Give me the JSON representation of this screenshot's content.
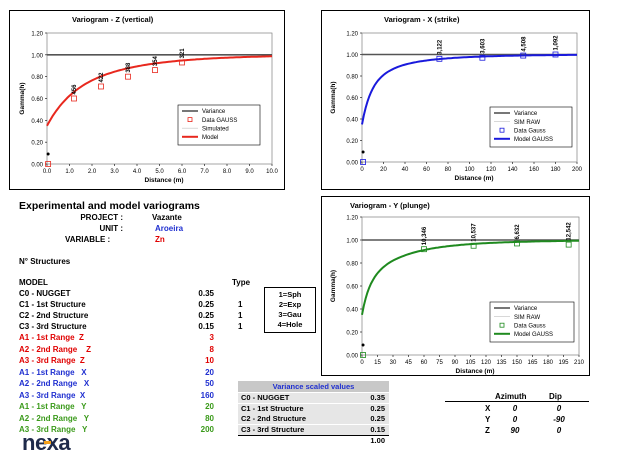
{
  "charts": {
    "z": {
      "title": "Variogram - Z (vertical)",
      "ylabel": "Gamma(h)",
      "xlabel": "Distance (m)",
      "xlim": [
        0,
        10
      ],
      "ylim": [
        0,
        1.2
      ],
      "xticks": [
        "0.0",
        "1.0",
        "2.0",
        "3.0",
        "4.0",
        "5.0",
        "6.0",
        "7.0",
        "8.0",
        "9.0",
        "10.0"
      ],
      "yticks": [
        "0.00",
        "0.20",
        "0.40",
        "0.60",
        "0.80",
        "1.00",
        "1.20"
      ],
      "legend": [
        "Variance",
        "Data GAUSS",
        "Simulated",
        "Model"
      ],
      "color": "#e8281e",
      "data_points": [
        {
          "x": 0.05,
          "y": 0.0,
          "label": "0"
        },
        {
          "x": 1.2,
          "y": 0.6,
          "label": "456"
        },
        {
          "x": 2.4,
          "y": 0.71,
          "label": "422"
        },
        {
          "x": 3.6,
          "y": 0.8,
          "label": "388"
        },
        {
          "x": 4.8,
          "y": 0.86,
          "label": "354"
        },
        {
          "x": 6.0,
          "y": 0.93,
          "label": "321"
        }
      ]
    },
    "x": {
      "title": "Variogram - X (strike)",
      "ylabel": "Gamma(h)",
      "xlabel": "Distance (m)",
      "xlim": [
        0,
        200
      ],
      "ylim": [
        0,
        1.2
      ],
      "xticks": [
        "0",
        "20",
        "40",
        "60",
        "80",
        "100",
        "120",
        "140",
        "160",
        "180",
        "200"
      ],
      "yticks": [
        "0.00",
        "0.20",
        "0.40",
        "0.60",
        "0.80",
        "1.00",
        "1.20"
      ],
      "legend": [
        "Variance",
        "SIM RAW",
        "Data Gauss",
        "Model GAUSS"
      ],
      "color": "#1a1adc",
      "data_points": [
        {
          "x": 1,
          "y": 0.0,
          "label": "0"
        },
        {
          "x": 72,
          "y": 0.96,
          "label": "3,122"
        },
        {
          "x": 112,
          "y": 0.97,
          "label": "3,603"
        },
        {
          "x": 150,
          "y": 0.99,
          "label": "4,508"
        },
        {
          "x": 180,
          "y": 1.0,
          "label": "1,092"
        }
      ]
    },
    "y": {
      "title": "Variogram - Y (plunge)",
      "ylabel": "Gamma(h)",
      "xlabel": "Distance (m)",
      "xlim": [
        0,
        210
      ],
      "ylim": [
        0,
        1.2
      ],
      "xticks": [
        "0",
        "15",
        "30",
        "45",
        "60",
        "75",
        "90",
        "105",
        "120",
        "135",
        "150",
        "165",
        "180",
        "195",
        "210"
      ],
      "yticks": [
        "0.00",
        "0.20",
        "0.40",
        "0.60",
        "0.80",
        "1.00",
        "1.20"
      ],
      "legend": [
        "Variance",
        "SIM RAW",
        "Data Gauss",
        "Model GAUSS"
      ],
      "color": "#1f8a1f",
      "data_points": [
        {
          "x": 1,
          "y": 0.0,
          "label": "0"
        },
        {
          "x": 60,
          "y": 0.92,
          "label": "10,346"
        },
        {
          "x": 108,
          "y": 0.95,
          "label": "10,537"
        },
        {
          "x": 150,
          "y": 0.97,
          "label": "6,632"
        },
        {
          "x": 200,
          "y": 0.96,
          "label": "12,542"
        }
      ]
    }
  },
  "model": {
    "nugget": 0.35,
    "sills": [
      0.25,
      0.25,
      0.15
    ],
    "ranges": {
      "z": [
        3,
        8,
        10
      ],
      "x": [
        20,
        50,
        160
      ],
      "y": [
        20,
        80,
        200
      ]
    }
  },
  "info": {
    "heading": "Experimental and model variograms",
    "project_label": "PROJECT :",
    "project_value": "Vazante",
    "unit_label": "UNIT :",
    "unit_value": "Aroeira",
    "variable_label": "VARIABLE :",
    "variable_value": "Zn",
    "structures_label": "N° Structures",
    "model_label": "MODEL",
    "type_label": "Type",
    "rows": [
      {
        "label": "C0 - NUGGET",
        "value": "0.35",
        "type": ""
      },
      {
        "label": "C1 - 1st Structure",
        "value": "0.25",
        "type": "1"
      },
      {
        "label": "C2 - 2nd Structure",
        "value": "0.25",
        "type": "1"
      },
      {
        "label": "C3 - 3rd Structure",
        "value": "0.15",
        "type": "1"
      }
    ],
    "types": [
      "1=Sph",
      "2=Exp",
      "3=Gau",
      "4=Hole"
    ],
    "ranges_z": [
      {
        "label": "A1 - 1st Range  Z",
        "value": "3"
      },
      {
        "label": "A2 - 2nd Range    Z",
        "value": "8"
      },
      {
        "label": "A3 - 3rd Range  Z",
        "value": "10"
      }
    ],
    "ranges_x": [
      {
        "label": "A1 - 1st Range   X",
        "value": "20"
      },
      {
        "label": "A2 - 2nd Range   X",
        "value": "50"
      },
      {
        "label": "A3 - 3rd Range  X",
        "value": "160"
      }
    ],
    "ranges_y": [
      {
        "label": "A1 - 1st Range   Y",
        "value": "20"
      },
      {
        "label": "A2 - 2nd Range   Y",
        "value": "80"
      },
      {
        "label": "A3 - 3rd Range   Y",
        "value": "200"
      }
    ]
  },
  "variance_scaled": {
    "title": "Variance scaled values",
    "rows": [
      {
        "label": "C0 - NUGGET",
        "value": "0.35"
      },
      {
        "label": "C1 - 1st Structure",
        "value": "0.25"
      },
      {
        "label": "C2 - 2nd Structure",
        "value": "0.25"
      },
      {
        "label": "C3 - 3rd Structure",
        "value": "0.15"
      }
    ],
    "total": "1.00"
  },
  "orientation": {
    "headers": [
      "Azimuth",
      "Dip"
    ],
    "rows": [
      {
        "axis": "X",
        "azimuth": "0",
        "dip": "0"
      },
      {
        "axis": "Y",
        "azimuth": "0",
        "dip": "-90"
      },
      {
        "axis": "Z",
        "azimuth": "90",
        "dip": "0"
      }
    ]
  },
  "logo": "nexa",
  "colors": {
    "red": "#e00000",
    "blue": "#1f2fd0",
    "green": "#3a9a1a"
  }
}
